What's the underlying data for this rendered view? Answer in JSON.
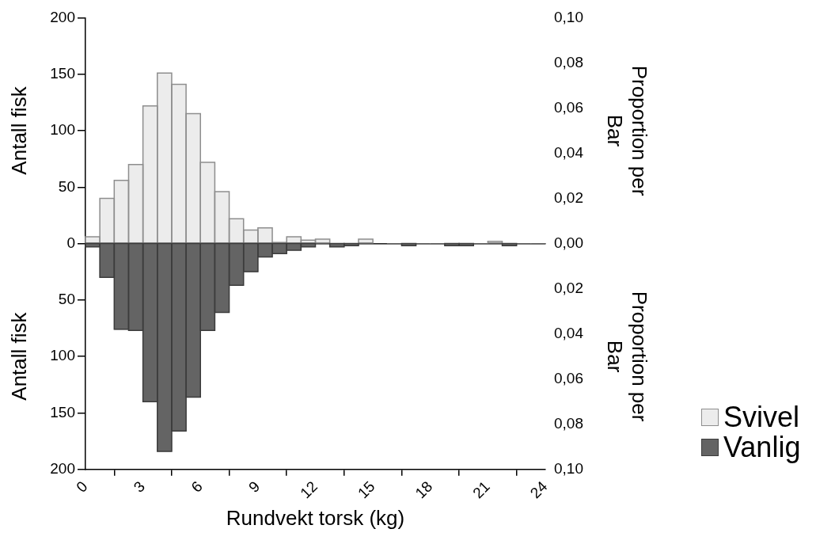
{
  "chart_data": [
    {
      "type": "histogram",
      "ylabel": "Antall fisk",
      "y2label": "Proportion per Bar",
      "bins": [
        0,
        0.75,
        1.5,
        2.25,
        3,
        3.75,
        4.5,
        5.25,
        6,
        6.75,
        7.5,
        8.25,
        9,
        9.75,
        10.5,
        11.25,
        12,
        12.75,
        13.5,
        14.25,
        15,
        15.75,
        16.5,
        17.25,
        18,
        18.75,
        19.5,
        20.25,
        21,
        21.75,
        22.5,
        23.25,
        24
      ],
      "series": [
        {
          "name": "Svivel",
          "color": "#ececec",
          "values": [
            6,
            40,
            56,
            70,
            122,
            151,
            141,
            115,
            72,
            46,
            22,
            12,
            14,
            1,
            6,
            3,
            4,
            0,
            0,
            4,
            null,
            0,
            0,
            0,
            0,
            0,
            0,
            0,
            2,
            0,
            0,
            0
          ]
        }
      ],
      "xlim": [
        0,
        24
      ],
      "ylim": [
        0,
        200
      ],
      "yticks": [
        0,
        50,
        100,
        150,
        200
      ],
      "y2lim": [
        0,
        0.1
      ],
      "y2ticks": [
        {
          "value": 0,
          "label": "0,00"
        },
        {
          "value": 0.02,
          "label": "0,02"
        },
        {
          "value": 0.04,
          "label": "0,04"
        },
        {
          "value": 0.06,
          "label": "0,06"
        },
        {
          "value": 0.08,
          "label": "0,08"
        },
        {
          "value": 0.1,
          "label": "0,10"
        }
      ],
      "tick_labels": "y",
      "legend": "right"
    },
    {
      "type": "histogram",
      "xlabel": "Rundvekt torsk (kg)",
      "ylabel": "Antall fisk",
      "y2label": "Proportion per Bar",
      "bins": [
        0,
        0.75,
        1.5,
        2.25,
        3,
        3.75,
        4.5,
        5.25,
        6,
        6.75,
        7.5,
        8.25,
        9,
        9.75,
        10.5,
        11.25,
        12,
        12.75,
        13.5,
        14.25,
        15,
        15.75,
        16.5,
        17.25,
        18,
        18.75,
        19.5,
        20.25,
        21,
        21.75,
        22.5,
        23.25,
        24
      ],
      "series": [
        {
          "name": "Vanlig",
          "color": "#646464",
          "values": [
            3,
            30,
            76,
            77,
            140,
            184,
            166,
            136,
            77,
            61,
            37,
            25,
            12,
            9,
            6,
            3,
            0,
            3,
            2,
            0,
            0,
            0,
            2,
            0,
            0,
            2,
            2,
            0,
            0,
            2,
            0,
            0
          ]
        }
      ],
      "xlim": [
        0,
        24
      ],
      "xticks": [
        0,
        3,
        6,
        9,
        12,
        15,
        18,
        21,
        24
      ],
      "ylim": [
        200,
        0
      ],
      "yticks": [
        50,
        100,
        150,
        200
      ],
      "y2lim": [
        0.1,
        0
      ],
      "y2ticks": [
        {
          "value": 0.02,
          "label": "0,02"
        },
        {
          "value": 0.04,
          "label": "0,04"
        },
        {
          "value": 0.06,
          "label": "0,06"
        },
        {
          "value": 0.08,
          "label": "0,08"
        },
        {
          "value": 0.1,
          "label": "0,10"
        }
      ],
      "legend": "right"
    }
  ]
}
